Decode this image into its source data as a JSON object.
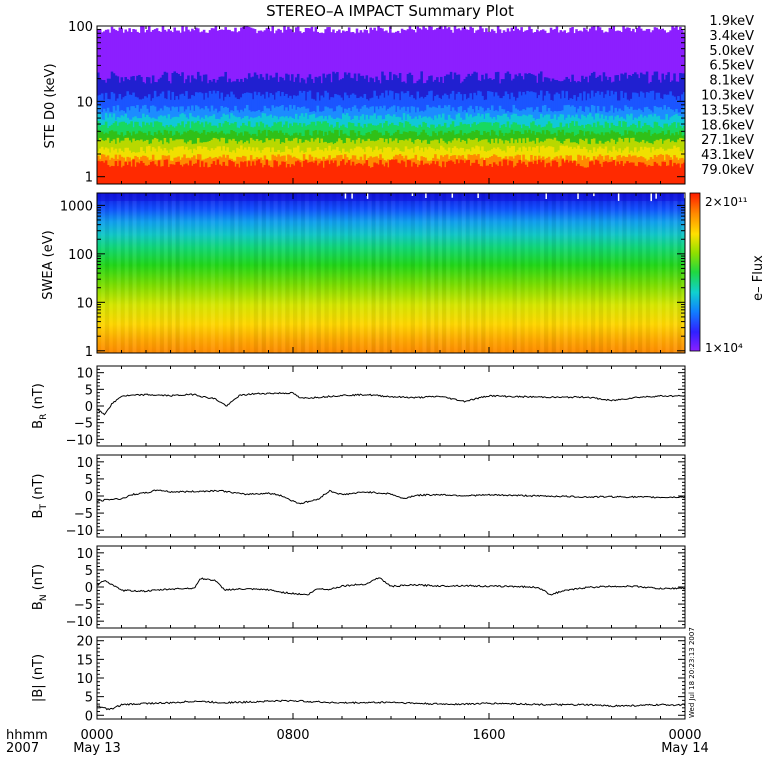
{
  "title": "STEREO–A IMPACT Summary Plot",
  "timestamp": "Wed Jul 18 20:23:13 2007",
  "time_axis": {
    "row1_label": "hhmm",
    "row2_label": "2007",
    "ticks": [
      {
        "hhmm": "0000",
        "date": "May 13"
      },
      {
        "hhmm": "0800",
        "date": ""
      },
      {
        "hhmm": "1600",
        "date": ""
      },
      {
        "hhmm": "0000",
        "date": "May 14"
      }
    ]
  },
  "chart_data": [
    {
      "id": "ste",
      "type": "line",
      "ylabel": "STE D0 (keV)",
      "yscale": "log",
      "ylim": [
        0.8,
        100
      ],
      "yticks": [
        "1",
        "10",
        "100"
      ],
      "series": [
        {
          "name": "1.9keV",
          "color": "#8c1fff",
          "level_range": [
            60,
            100
          ]
        },
        {
          "name": "3.4keV",
          "color": "#2020d0",
          "level_range": [
            11,
            25
          ]
        },
        {
          "name": "5.0keV",
          "color": "#1b55ff",
          "level_range": [
            7,
            14
          ]
        },
        {
          "name": "6.5keV",
          "color": "#1c8cff",
          "level_range": [
            5.5,
            9
          ]
        },
        {
          "name": "8.1keV",
          "color": "#10c8d8",
          "level_range": [
            4.5,
            7
          ]
        },
        {
          "name": "10.3keV",
          "color": "#18d860",
          "level_range": [
            3.5,
            5.5
          ]
        },
        {
          "name": "13.5keV",
          "color": "#30c018",
          "level_range": [
            2.8,
            4.2
          ]
        },
        {
          "name": "18.6keV",
          "color": "#b8d800",
          "level_range": [
            2.2,
            3.3
          ]
        },
        {
          "name": "27.1keV",
          "color": "#f0e000",
          "level_range": [
            1.6,
            2.6
          ]
        },
        {
          "name": "43.1keV",
          "color": "#ff8a00",
          "level_range": [
            1.3,
            2.0
          ]
        },
        {
          "name": "79.0keV",
          "color": "#ff2a00",
          "level_range": [
            1.0,
            1.7
          ]
        }
      ]
    },
    {
      "id": "swea",
      "type": "heatmap",
      "ylabel": "SWEA (eV)",
      "yscale": "log",
      "ylim": [
        0.9,
        1800
      ],
      "yticks": [
        "1",
        "10",
        "100",
        "1000"
      ],
      "colorbar": {
        "label": "e– Flux",
        "max_label": "2×10¹¹",
        "min_label": "1×10⁴"
      }
    },
    {
      "id": "br",
      "type": "line",
      "ylabel": "B",
      "ylabel_sub": "R",
      "ylabel_unit": "(nT)",
      "ylim": [
        -12,
        12
      ],
      "yticks": [
        "10",
        "5",
        "0",
        "−5",
        "−10"
      ],
      "x_hours": [
        0,
        0.3,
        0.6,
        1,
        1.5,
        2,
        3,
        4,
        4.3,
        4.8,
        5.3,
        5.8,
        6.3,
        7,
        8,
        8.3,
        9,
        10,
        11,
        12,
        13,
        14,
        15,
        16,
        17,
        18,
        19,
        20,
        21,
        22,
        23,
        24
      ],
      "values": [
        -1,
        -2.5,
        0.5,
        3,
        3.2,
        3.4,
        3.1,
        3.5,
        2.8,
        2.2,
        0,
        3.1,
        3.6,
        3.8,
        3.9,
        2.3,
        2.6,
        3.2,
        3.4,
        2.8,
        2.5,
        2.9,
        1.4,
        3.1,
        2.8,
        2.7,
        2.6,
        2.7,
        1.6,
        2.6,
        3.0,
        3.0
      ]
    },
    {
      "id": "bt",
      "type": "line",
      "ylabel": "B",
      "ylabel_sub": "T",
      "ylabel_unit": "(nT)",
      "ylim": [
        -12,
        12
      ],
      "yticks": [
        "10",
        "5",
        "0",
        "−5",
        "−10"
      ],
      "x_hours": [
        0,
        0.5,
        1,
        1.5,
        2,
        2.5,
        3,
        4,
        5,
        6,
        7,
        7.5,
        8,
        8.3,
        9,
        9.5,
        10,
        11,
        12,
        12.5,
        13,
        14,
        15,
        16,
        17,
        18,
        19,
        20,
        21,
        22,
        23,
        24
      ],
      "values": [
        -1.5,
        -1,
        -0.8,
        0.5,
        0.9,
        1.8,
        1.2,
        1.3,
        1.6,
        0.5,
        0.8,
        0.2,
        -1.5,
        -2.2,
        -1.0,
        1.5,
        0.4,
        1.2,
        0.6,
        -0.8,
        0.2,
        0.4,
        0.1,
        0.3,
        0.2,
        0.0,
        -0.1,
        -0.3,
        -0.2,
        -0.3,
        -0.4,
        -0.3
      ]
    },
    {
      "id": "bn",
      "type": "line",
      "ylabel": "B",
      "ylabel_sub": "N",
      "ylabel_unit": "(nT)",
      "ylim": [
        -12,
        12
      ],
      "yticks": [
        "10",
        "5",
        "0",
        "−5",
        "−10"
      ],
      "x_hours": [
        0,
        0.3,
        0.7,
        1,
        2,
        3,
        4,
        4.2,
        4.8,
        5.2,
        6,
        7,
        7.5,
        8,
        8.6,
        9,
        9.5,
        10,
        11,
        11.5,
        12,
        13,
        14,
        15,
        16,
        17,
        18,
        18.5,
        19,
        20,
        21,
        22,
        23,
        24
      ],
      "values": [
        0.5,
        2.0,
        0.3,
        -1.0,
        -1.2,
        -0.6,
        -0.3,
        2.5,
        2.0,
        -0.8,
        -0.6,
        -0.8,
        -1.5,
        -1.9,
        -2.3,
        -0.5,
        -0.7,
        0.3,
        0.9,
        2.8,
        0.2,
        0.6,
        0.3,
        0.4,
        0.2,
        0.2,
        -0.1,
        -2.2,
        -1.2,
        -0.1,
        0.2,
        0.2,
        -0.5,
        -0.3
      ]
    },
    {
      "id": "bmag",
      "type": "line",
      "ylabel": "|B| (nT)",
      "ylim": [
        -1,
        21
      ],
      "yticks": [
        "20",
        "15",
        "10",
        "5",
        "0"
      ],
      "x_hours": [
        0,
        0.5,
        1,
        2,
        3,
        4,
        5,
        6,
        7,
        8,
        9,
        10,
        11,
        12,
        13,
        14,
        15,
        16,
        17,
        18,
        19,
        20,
        21,
        22,
        23,
        24
      ],
      "values": [
        2.5,
        1.5,
        2.8,
        3.2,
        3.3,
        3.8,
        3.4,
        3.5,
        3.8,
        3.9,
        3.6,
        3.3,
        3.4,
        3.5,
        3.2,
        3.0,
        3.0,
        3.2,
        3.1,
        2.9,
        2.8,
        2.8,
        2.5,
        2.6,
        2.8,
        2.8
      ]
    }
  ]
}
